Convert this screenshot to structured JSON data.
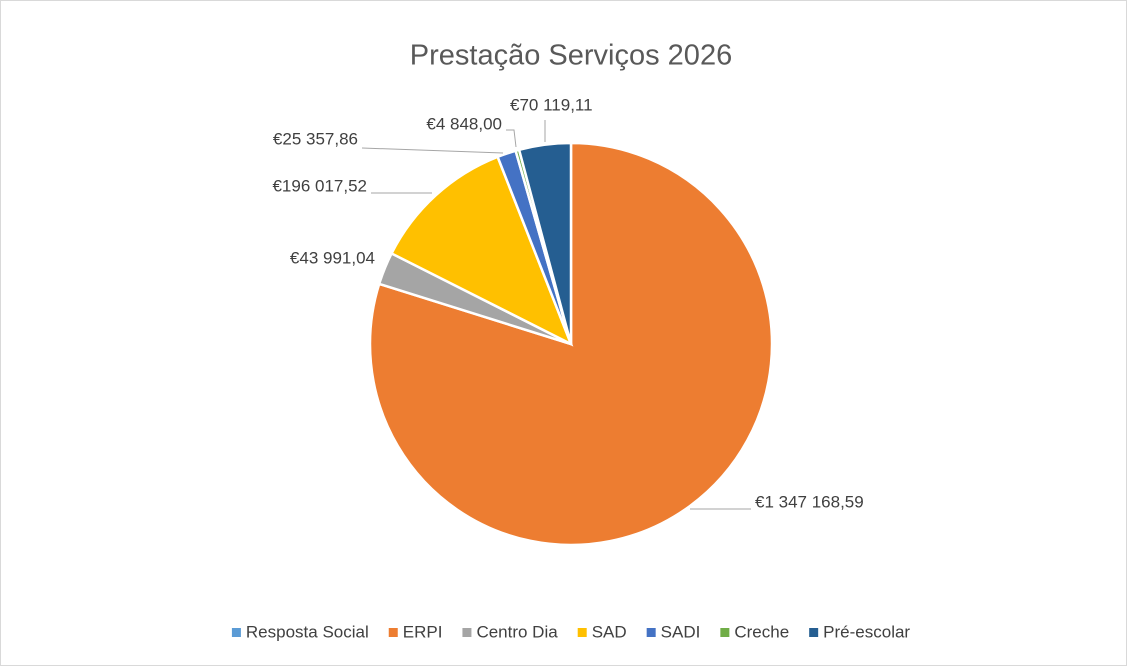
{
  "chart_data": {
    "type": "pie",
    "title": "Prestação Serviços 2026",
    "categories": [
      "Resposta Social",
      "ERPI",
      "Centro Dia",
      "SAD",
      "SADI",
      "Creche",
      "Pré-escolar"
    ],
    "values": [
      null,
      1347168.59,
      43991.04,
      196017.52,
      25357.86,
      4848.0,
      70119.11
    ],
    "value_labels": [
      null,
      "€1 347 168,59",
      "€43 991,04",
      "€196 017,52",
      "€25 357,86",
      "€4 848,00",
      "€70 119,11"
    ],
    "colors": [
      "#5b9bd5",
      "#ed7d31",
      "#a5a5a5",
      "#ffc000",
      "#4472c4",
      "#70ad47",
      "#255e91"
    ],
    "legend": "bottom"
  }
}
